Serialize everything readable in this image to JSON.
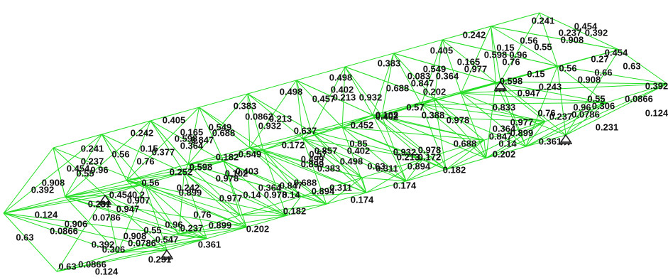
{
  "labels": [
    "0.241",
    "0.454",
    "0.237",
    "0.392",
    "0.242",
    "0.56",
    "0.908",
    "0.15",
    "0.55",
    "0.405",
    "0.454",
    "0.598",
    "0.96",
    "0.383",
    "0.63",
    "0.165",
    "0.76",
    "0.27",
    "0.549",
    "0.977",
    "0.498",
    "0.083",
    "0.364",
    "0.688",
    "0.847",
    "0.598",
    "0.15",
    "0.56",
    "0.243",
    "0.908",
    "0.66",
    "0.392",
    "0.947",
    "0.213",
    "0.932",
    "0.402",
    "0.457",
    "0.498",
    "0.202",
    "0.57",
    "0.102",
    "0.388",
    "0.833",
    "0.978",
    "0.55",
    "0.0866",
    "0.124",
    "0.96",
    "0.306",
    "0.0786",
    "0.231",
    "0.76",
    "0.977",
    "0.237",
    "0.364",
    "0.899",
    "0.847",
    "0.14",
    "0.202",
    "0.688",
    "0.182",
    "0.361",
    "0.405",
    "0.242",
    "0.241",
    "0.383",
    "0.0862",
    "0.549",
    "0.932",
    "0.637",
    "0.213",
    "0.165",
    "0.688",
    "0.598",
    "0.364",
    "0.847",
    "0.377",
    "0.56",
    "0.15",
    "0.76",
    "0.237",
    "0.96",
    "0.454",
    "0.55",
    "0.908",
    "0.392",
    "0.124",
    "0.0866",
    "0.63",
    "0.231",
    "0.454",
    "0.2",
    "0.907",
    "0.56",
    "0.252",
    "0.598",
    "0.242",
    "0.899",
    "0.182",
    "0.549",
    "0.403",
    "0.978",
    "0.102",
    "0.57",
    "0.172",
    "0.498",
    "0.499",
    "0.383",
    "0.899",
    "0.85",
    "0.857",
    "0.402",
    "0.452",
    "0.402",
    "0.213",
    "0.63",
    "0.311",
    "0.894",
    "0.172",
    "0.978",
    "0.932",
    "0.174",
    "0.174",
    "0.182",
    "0.202",
    "0.361",
    "0.847",
    "0.894",
    "0.311",
    "0.14",
    "0.364",
    "0.688",
    "0.978",
    "0.977",
    "0.76",
    "0.96",
    "0.237",
    "0.899",
    "0.14",
    "0.947",
    "0.0786",
    "0.906",
    "0.55",
    "0.908",
    "0.392",
    "0.306",
    "0.0786",
    "0.547",
    "0.231",
    "0.63",
    "0.0866",
    "0.124"
  ]
}
